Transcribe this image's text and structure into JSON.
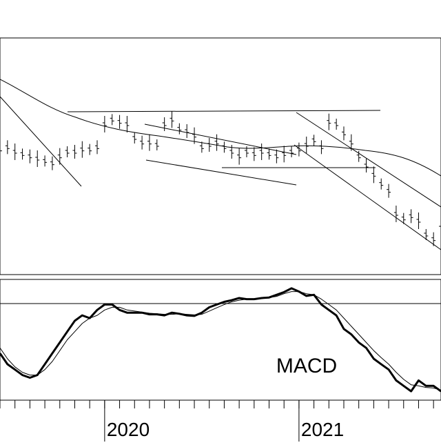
{
  "chart_data": [
    {
      "type": "ohlc",
      "panel": "price",
      "x_unit": "week",
      "price_points": [
        [
          -12,
          61
        ],
        [
          -10,
          62
        ],
        [
          -8,
          60
        ],
        [
          -6,
          59
        ],
        [
          -4,
          58
        ],
        [
          -2,
          57
        ],
        [
          0,
          56
        ],
        [
          2,
          55
        ],
        [
          4,
          58
        ],
        [
          6,
          60
        ],
        [
          8,
          60
        ],
        [
          10,
          61
        ],
        [
          12,
          61
        ],
        [
          14,
          62
        ],
        [
          16,
          72
        ],
        [
          18,
          74
        ],
        [
          20,
          73
        ],
        [
          22,
          72
        ],
        [
          24,
          66
        ],
        [
          26,
          64
        ],
        [
          28,
          64
        ],
        [
          30,
          63
        ],
        [
          32,
          72
        ],
        [
          34,
          74
        ],
        [
          36,
          70
        ],
        [
          38,
          69
        ],
        [
          40,
          67
        ],
        [
          42,
          62
        ],
        [
          44,
          63
        ],
        [
          46,
          64
        ],
        [
          48,
          62
        ],
        [
          50,
          60
        ],
        [
          52,
          58
        ],
        [
          54,
          60
        ],
        [
          56,
          59
        ],
        [
          58,
          60
        ],
        [
          60,
          59
        ],
        [
          62,
          58
        ],
        [
          64,
          59
        ],
        [
          66,
          60
        ],
        [
          68,
          61
        ],
        [
          70,
          63
        ],
        [
          72,
          65
        ],
        [
          74,
          62
        ],
        [
          76,
          73
        ],
        [
          78,
          72
        ],
        [
          80,
          68
        ],
        [
          82,
          64
        ],
        [
          84,
          58
        ],
        [
          86,
          54
        ],
        [
          88,
          50
        ],
        [
          90,
          46
        ],
        [
          92,
          43
        ],
        [
          94,
          33
        ],
        [
          96,
          31
        ],
        [
          98,
          32
        ],
        [
          100,
          30
        ],
        [
          102,
          24
        ],
        [
          104,
          22
        ],
        [
          106,
          27
        ]
      ],
      "year_labels": [
        {
          "label": "2020",
          "x": 16
        },
        {
          "label": "2021",
          "x": 68
        }
      ]
    },
    {
      "type": "line",
      "panel": "indicator",
      "annotation": "MACD",
      "x_unit": "week",
      "series": [
        {
          "style": "thick",
          "x": [
            -12,
            -10,
            -8,
            -6,
            -4,
            -2,
            0,
            2,
            4,
            6,
            8,
            10,
            12,
            14,
            16,
            18,
            20,
            22,
            24,
            26,
            28,
            30,
            32,
            34,
            36,
            38,
            40,
            42,
            44,
            46,
            48,
            50,
            52,
            54,
            56,
            58,
            60,
            62,
            64,
            66,
            68,
            70,
            72,
            74,
            76,
            78,
            80,
            82,
            84,
            86,
            88,
            90,
            92,
            94,
            96,
            98,
            100,
            102,
            104,
            106
          ],
          "values": [
            -6,
            -8,
            -9,
            -10,
            -10.5,
            -10,
            -8,
            -6,
            -4,
            -2,
            0,
            1,
            0.5,
            2,
            3,
            3,
            2,
            1.5,
            1.5,
            1.5,
            1.2,
            1.2,
            1.0,
            1.5,
            1.3,
            1.0,
            0.9,
            1.5,
            2.5,
            3.0,
            3.5,
            3.8,
            4.2,
            4.0,
            4.0,
            4.2,
            4.3,
            4.8,
            5.3,
            6.0,
            5.4,
            4.6,
            4.8,
            3.0,
            2.0,
            1.0,
            -1.5,
            -2.5,
            -4,
            -5,
            -7,
            -8,
            -9,
            -11,
            -12,
            -13,
            -11,
            -12,
            -12,
            -13
          ]
        },
        {
          "style": "thin",
          "x": [
            -12,
            -10,
            -8,
            -6,
            -4,
            -2,
            0,
            2,
            4,
            6,
            8,
            10,
            12,
            14,
            16,
            18,
            20,
            22,
            24,
            26,
            28,
            30,
            32,
            34,
            36,
            38,
            40,
            42,
            44,
            46,
            48,
            50,
            52,
            54,
            56,
            58,
            60,
            62,
            64,
            66,
            68,
            70,
            72,
            74,
            76,
            78,
            80,
            82,
            84,
            86,
            88,
            90,
            92,
            94,
            96,
            98,
            100,
            102,
            104,
            106
          ],
          "values": [
            -5,
            -7,
            -8.5,
            -9.5,
            -10,
            -10,
            -9,
            -7.5,
            -5.5,
            -3.5,
            -2,
            -0.5,
            0.5,
            1,
            2,
            2.5,
            2.5,
            2,
            1.8,
            1.6,
            1.4,
            1.3,
            1.2,
            1.2,
            1.3,
            1.2,
            1.1,
            1.2,
            1.8,
            2.4,
            3.0,
            3.5,
            3.8,
            4.0,
            4.0,
            4.1,
            4.3,
            4.5,
            5.0,
            5.4,
            5.4,
            5.0,
            4.8,
            4.0,
            3.0,
            2.0,
            0.5,
            -1,
            -2.5,
            -4,
            -5.5,
            -6.8,
            -8,
            -9.5,
            -10.8,
            -11.8,
            -12,
            -12.3,
            -12.4,
            -12.8
          ]
        }
      ]
    }
  ]
}
